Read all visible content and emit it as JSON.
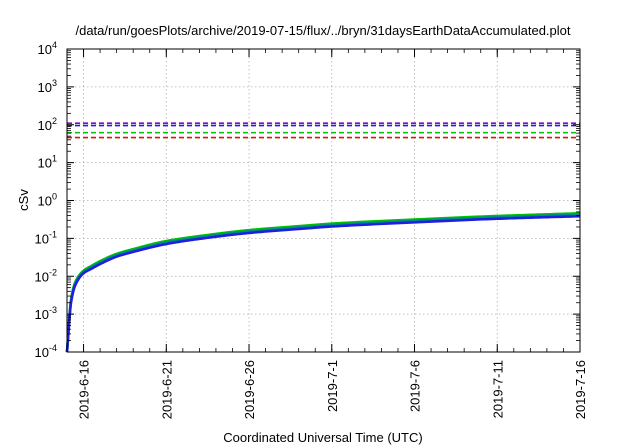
{
  "chart_data": {
    "type": "line",
    "title": "/data/run/goesPlots/archive/2019-07-15/flux/../bryn/31daysEarthDataAccumulated.plot",
    "xlabel": "Coordinated Universal Time (UTC)",
    "ylabel": "cSv",
    "yscale": "log",
    "ylim": [
      0.0001,
      10000
    ],
    "xlim": [
      "2019-06-15",
      "2019-07-16"
    ],
    "grid": true,
    "x_ticks": [
      "2019-6-16",
      "2019-6-21",
      "2019-6-26",
      "2019-7-1",
      "2019-7-6",
      "2019-7-11",
      "2019-7-16"
    ],
    "y_ticks": [
      {
        "base": "10",
        "exp": "-4",
        "value": 0.0001
      },
      {
        "base": "10",
        "exp": "-3",
        "value": 0.001
      },
      {
        "base": "10",
        "exp": "-2",
        "value": 0.01
      },
      {
        "base": "10",
        "exp": "-1",
        "value": 0.1
      },
      {
        "base": "10",
        "exp": "0",
        "value": 1
      },
      {
        "base": "10",
        "exp": "1",
        "value": 10
      },
      {
        "base": "10",
        "exp": "2",
        "value": 100
      },
      {
        "base": "10",
        "exp": "3",
        "value": 1000
      },
      {
        "base": "10",
        "exp": "4",
        "value": 10000
      }
    ],
    "reference_lines": [
      {
        "value": 110,
        "color": "#9400d3",
        "style": "dashed"
      },
      {
        "value": 95,
        "color": "#1f1fe0",
        "style": "dashed"
      },
      {
        "value": 62,
        "color": "#00c000",
        "style": "dashed"
      },
      {
        "value": 46,
        "color": "#e01010",
        "style": "dashed"
      }
    ],
    "series": [
      {
        "color": "#00c000",
        "x": [
          "2019-06-15 00:00",
          "2019-06-15 06:00",
          "2019-06-15 12:00",
          "2019-06-16 00:00",
          "2019-06-16 12:00",
          "2019-06-17 00:00",
          "2019-06-18 00:00",
          "2019-06-19 00:00",
          "2019-06-21 00:00",
          "2019-06-23 00:00",
          "2019-06-26 00:00",
          "2019-06-29 00:00",
          "2019-07-01 00:00",
          "2019-07-06 00:00",
          "2019-07-11 00:00",
          "2019-07-16 00:00"
        ],
        "values": [
          0.0001,
          0.0025,
          0.007,
          0.014,
          0.019,
          0.025,
          0.039,
          0.052,
          0.085,
          0.115,
          0.165,
          0.21,
          0.245,
          0.315,
          0.39,
          0.46
        ]
      },
      {
        "color": "#008b8b",
        "x": [
          "2019-06-15 00:00",
          "2019-06-15 06:00",
          "2019-06-15 12:00",
          "2019-06-16 00:00",
          "2019-06-16 12:00",
          "2019-06-17 00:00",
          "2019-06-18 00:00",
          "2019-06-19 00:00",
          "2019-06-21 00:00",
          "2019-06-23 00:00",
          "2019-06-26 00:00",
          "2019-06-29 00:00",
          "2019-07-01 00:00",
          "2019-07-06 00:00",
          "2019-07-11 00:00",
          "2019-07-16 00:00"
        ],
        "values": [
          0.0001,
          0.0023,
          0.0064,
          0.013,
          0.0175,
          0.023,
          0.036,
          0.048,
          0.078,
          0.106,
          0.152,
          0.193,
          0.225,
          0.29,
          0.36,
          0.42
        ]
      },
      {
        "color": "#1f1fe0",
        "x": [
          "2019-06-15 00:00",
          "2019-06-15 06:00",
          "2019-06-15 12:00",
          "2019-06-16 00:00",
          "2019-06-16 12:00",
          "2019-06-17 00:00",
          "2019-06-18 00:00",
          "2019-06-19 00:00",
          "2019-06-21 00:00",
          "2019-06-23 00:00",
          "2019-06-26 00:00",
          "2019-06-29 00:00",
          "2019-07-01 00:00",
          "2019-07-06 00:00",
          "2019-07-11 00:00",
          "2019-07-16 00:00"
        ],
        "values": [
          0.0001,
          0.0021,
          0.0058,
          0.012,
          0.016,
          0.021,
          0.033,
          0.044,
          0.071,
          0.097,
          0.139,
          0.177,
          0.206,
          0.265,
          0.33,
          0.385
        ]
      }
    ]
  }
}
